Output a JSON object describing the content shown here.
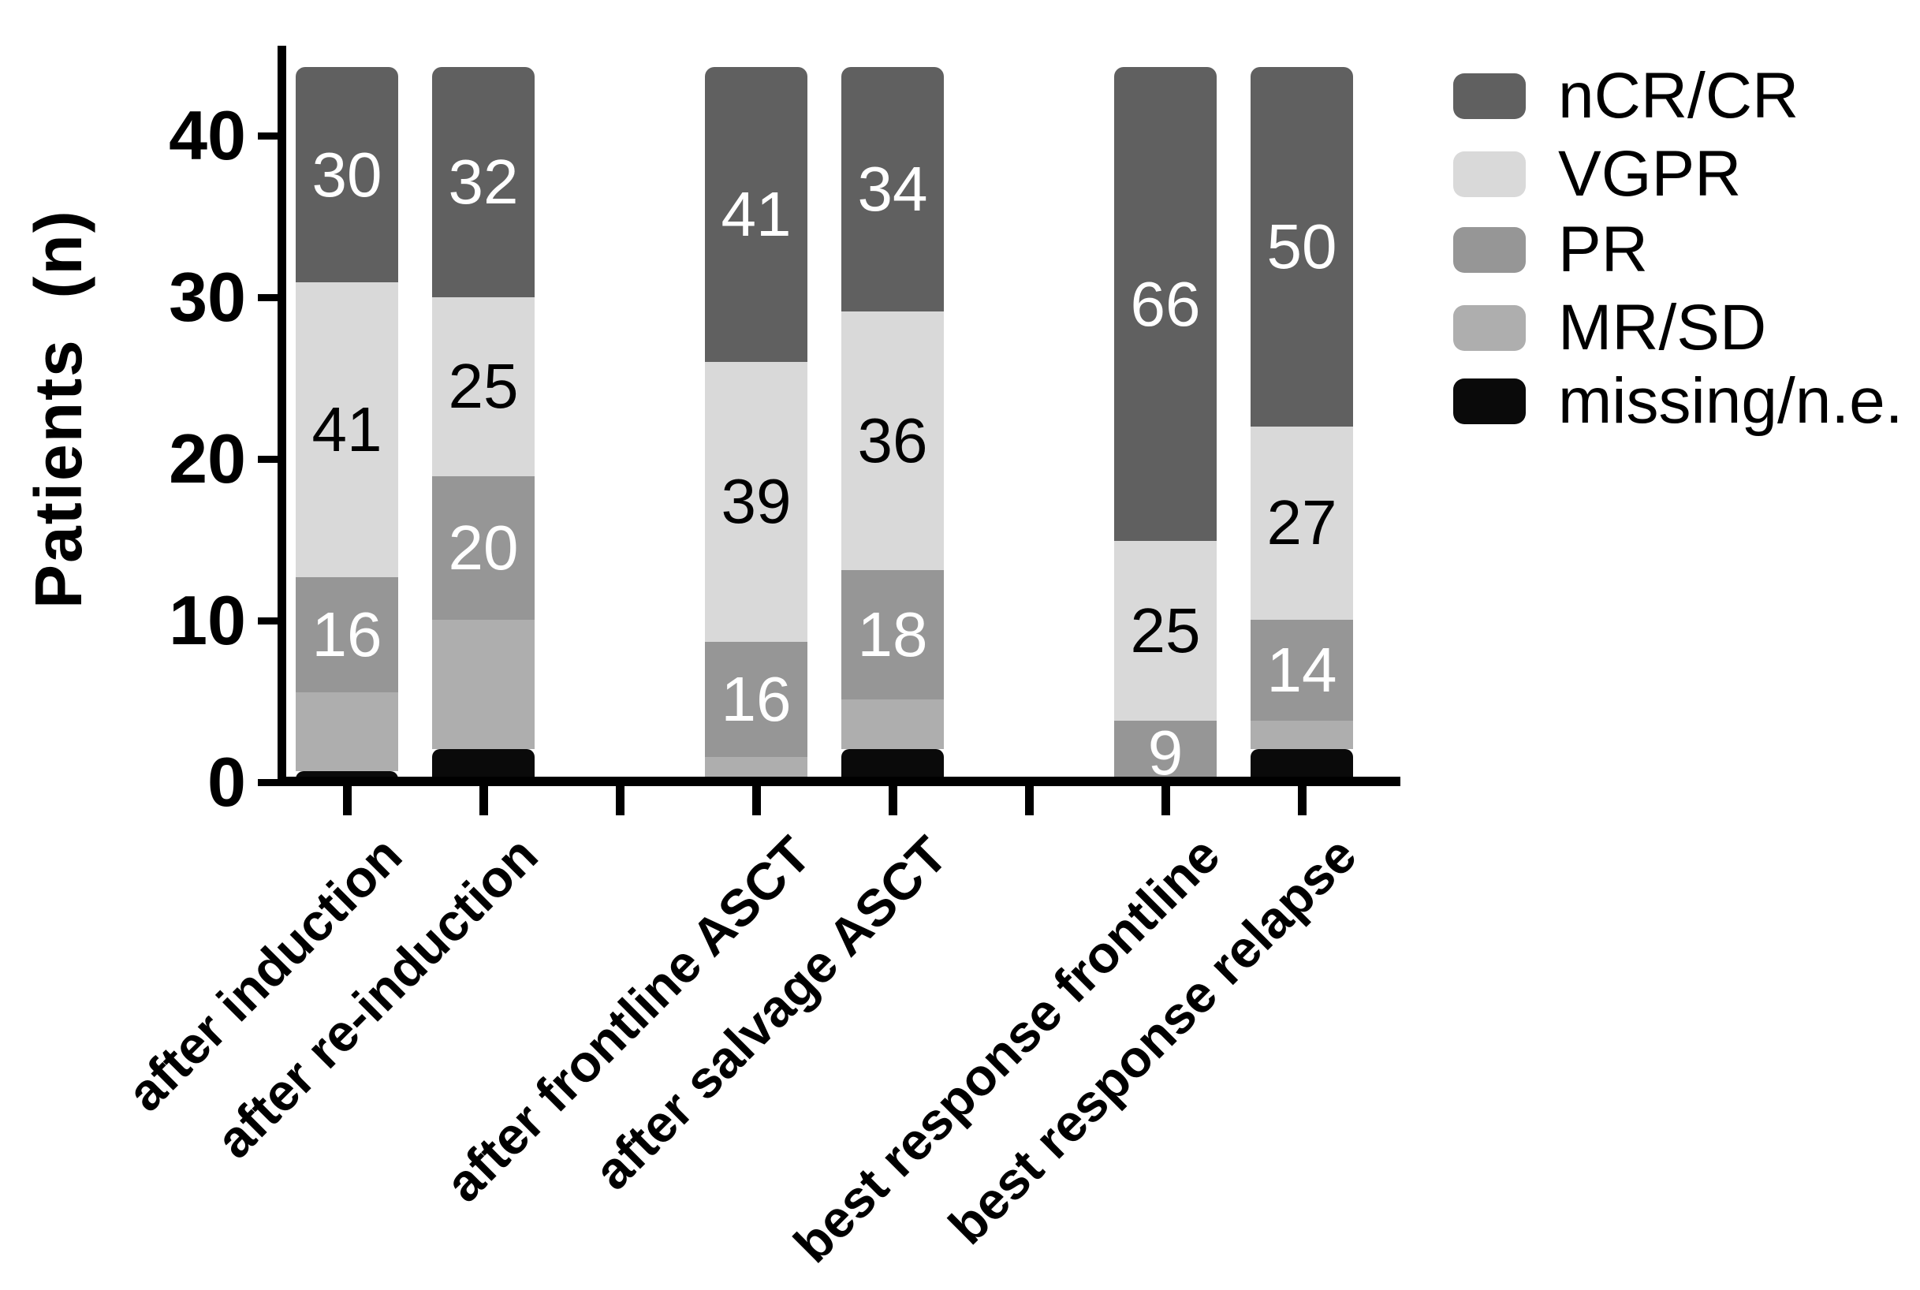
{
  "y_axis": {
    "label": "Patients  (n)",
    "ticks": [
      "40",
      "30",
      "20",
      "10",
      "0"
    ],
    "tick_values": [
      40,
      30,
      20,
      10,
      0
    ]
  },
  "legend": {
    "position": "right",
    "items": [
      {
        "label": "nCR/CR",
        "color": "#606060"
      },
      {
        "label": "VGPR",
        "color": "#d9d9d9"
      },
      {
        "label": "PR",
        "color": "#969696"
      },
      {
        "label": "MR/SD",
        "color": "#aeaeae"
      },
      {
        "label": "missing/n.e.",
        "color": "#0a0a0a"
      }
    ]
  },
  "chart_data": {
    "type": "bar",
    "subtype": "stacked",
    "title": "",
    "xlabel": "",
    "ylabel": "Patients  (n)",
    "ylim": [
      0,
      44
    ],
    "yticks": [
      0,
      10,
      20,
      30,
      40
    ],
    "grid": false,
    "legend_position": "right",
    "bar_full_height_patients": 44,
    "value_labels_unit": "percent",
    "categories": [
      "after induction",
      "after re-induction",
      "after frontline ASCT",
      "after salvage ASCT",
      "best response frontline",
      "best response relapse"
    ],
    "series_bottom_to_top": [
      {
        "name": "missing/n.e.",
        "color": "#0a0a0a",
        "labeled": false,
        "label_color": null,
        "values": [
          2,
          5,
          0,
          5,
          0,
          5
        ]
      },
      {
        "name": "MR/SD",
        "color": "#aeaeae",
        "labeled": false,
        "label_color": null,
        "values": [
          11,
          18,
          4,
          7,
          0,
          4
        ]
      },
      {
        "name": "PR",
        "color": "#969696",
        "labeled": true,
        "label_color": "#ffffff",
        "values": [
          16,
          20,
          16,
          18,
          9,
          14
        ]
      },
      {
        "name": "VGPR",
        "color": "#d9d9d9",
        "labeled": true,
        "label_color": "#000000",
        "values": [
          41,
          25,
          39,
          36,
          25,
          27
        ]
      },
      {
        "name": "nCR/CR",
        "color": "#606060",
        "labeled": true,
        "label_color": "#ffffff",
        "values": [
          30,
          32,
          41,
          34,
          66,
          50
        ]
      }
    ]
  }
}
